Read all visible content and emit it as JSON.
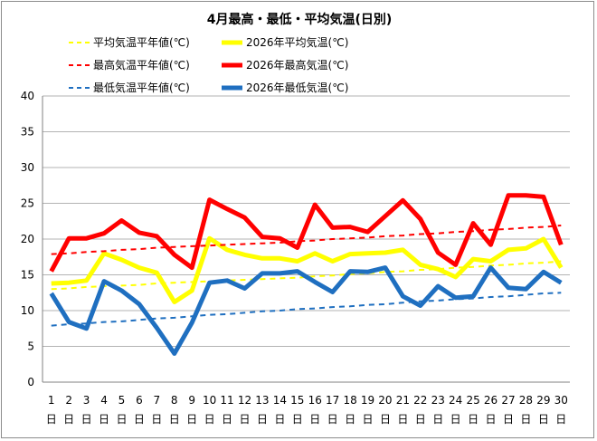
{
  "chart_data": {
    "type": "line",
    "title": "4月最高・最低・平均気温(日別)",
    "xlabel": "",
    "ylabel": "",
    "ylim": [
      0,
      40
    ],
    "yticks": [
      "0",
      "5",
      "10",
      "15",
      "20",
      "25",
      "30",
      "35",
      "40"
    ],
    "x": [
      1,
      2,
      3,
      4,
      5,
      6,
      7,
      8,
      9,
      10,
      11,
      12,
      13,
      14,
      15,
      16,
      17,
      18,
      19,
      20,
      21,
      22,
      23,
      24,
      25,
      26,
      27,
      28,
      29,
      30
    ],
    "x_labels": [
      "1",
      "2",
      "3",
      "4",
      "5",
      "6",
      "7",
      "8",
      "9",
      "10",
      "11",
      "12",
      "13",
      "14",
      "15",
      "16",
      "17",
      "18",
      "19",
      "20",
      "21",
      "22",
      "23",
      "24",
      "25",
      "26",
      "27",
      "28",
      "29",
      "30"
    ],
    "x_suffix": "日",
    "grid": "horizontal",
    "legend_position": "top",
    "series": [
      {
        "name": "平均気温平年値(℃)",
        "style": "dashed",
        "color": "#ffff00",
        "values": [
          13.0,
          13.1,
          13.3,
          13.4,
          13.5,
          13.6,
          13.8,
          13.9,
          14.0,
          14.1,
          14.2,
          14.3,
          14.4,
          14.5,
          14.6,
          14.8,
          14.9,
          15.1,
          15.2,
          15.4,
          15.5,
          15.7,
          15.8,
          16.0,
          16.1,
          16.3,
          16.4,
          16.6,
          16.7,
          16.9
        ]
      },
      {
        "name": "2026年平均気温(℃)",
        "style": "solid",
        "color": "#ffff00",
        "values": [
          13.8,
          13.9,
          14.2,
          18.0,
          17.1,
          16.0,
          15.3,
          11.2,
          12.8,
          20.1,
          18.5,
          17.8,
          17.3,
          17.3,
          16.9,
          18.0,
          16.9,
          17.9,
          18.0,
          18.1,
          18.5,
          16.4,
          15.8,
          14.7,
          17.2,
          16.9,
          18.5,
          18.7,
          20.0,
          16.0
        ]
      },
      {
        "name": "最高気温平年値(℃)",
        "style": "dashed",
        "color": "#ff0000",
        "values": [
          17.9,
          18.0,
          18.2,
          18.3,
          18.5,
          18.6,
          18.8,
          18.9,
          19.0,
          19.1,
          19.2,
          19.3,
          19.4,
          19.5,
          19.7,
          19.8,
          20.0,
          20.1,
          20.2,
          20.4,
          20.5,
          20.7,
          20.8,
          21.0,
          21.1,
          21.3,
          21.4,
          21.6,
          21.7,
          21.9
        ]
      },
      {
        "name": "2026年最高気温(℃)",
        "style": "solid",
        "color": "#ff0000",
        "values": [
          15.5,
          20.1,
          20.1,
          20.8,
          22.6,
          20.9,
          20.4,
          17.8,
          16.0,
          25.5,
          24.2,
          23.0,
          20.3,
          20.1,
          18.8,
          24.8,
          21.6,
          21.7,
          21.0,
          23.2,
          25.4,
          22.8,
          18.1,
          16.4,
          22.2,
          19.2,
          26.1,
          26.1,
          25.9,
          19.2
        ]
      },
      {
        "name": "最低気温平年値(℃)",
        "style": "dashed",
        "color": "#1f6fc0",
        "values": [
          7.9,
          8.1,
          8.2,
          8.4,
          8.5,
          8.7,
          8.9,
          9.0,
          9.2,
          9.4,
          9.5,
          9.7,
          9.9,
          10.0,
          10.2,
          10.3,
          10.5,
          10.6,
          10.8,
          10.9,
          11.1,
          11.3,
          11.4,
          11.6,
          11.7,
          11.9,
          12.0,
          12.2,
          12.4,
          12.5
        ]
      },
      {
        "name": "2026年最低気温(℃)",
        "style": "solid",
        "color": "#1f6fc0",
        "values": [
          12.4,
          8.4,
          7.5,
          14.1,
          12.8,
          10.9,
          7.6,
          4.0,
          8.3,
          13.9,
          14.2,
          13.1,
          15.2,
          15.2,
          15.5,
          14.0,
          12.6,
          15.5,
          15.4,
          16.0,
          12.0,
          10.7,
          13.4,
          11.8,
          12.0,
          16.0,
          13.2,
          13.0,
          15.4,
          13.9
        ]
      }
    ]
  }
}
